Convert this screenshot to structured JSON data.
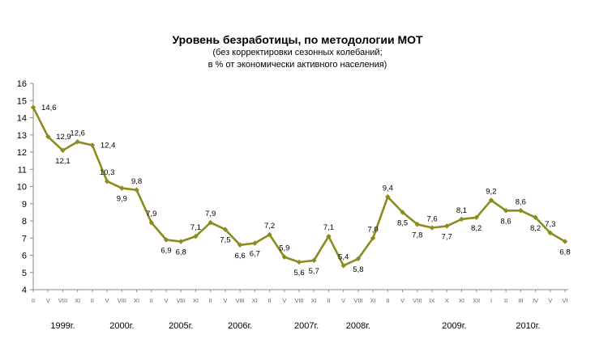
{
  "chart_data": {
    "type": "line",
    "title": "Уровень безработицы, по методологии МОТ",
    "subtitle_1": "(без корректировки сезонных колебаний;",
    "subtitle_2": "в  % от экономически активного населения)",
    "ylim": [
      4,
      16
    ],
    "yticks": [
      "4",
      "5",
      "6",
      "7",
      "8",
      "9",
      "10",
      "11",
      "12",
      "13",
      "14",
      "15",
      "16"
    ],
    "grid": false,
    "legend": "none",
    "color": "#8B8B1E",
    "x": [
      "II",
      "V",
      "VIII",
      "XI",
      "II",
      "V",
      "VIII",
      "XI",
      "II",
      "V",
      "VIII",
      "XI",
      "II",
      "V",
      "VIII",
      "XI",
      "II",
      "V",
      "VIII",
      "XI",
      "II",
      "V",
      "VIII",
      "XI",
      "II",
      "V",
      "VIII",
      "IX",
      "X",
      "XI",
      "XII",
      "I",
      "II",
      "III",
      "IV",
      "V",
      "VI"
    ],
    "values": [
      14.6,
      12.9,
      12.1,
      12.6,
      12.4,
      10.3,
      9.9,
      9.8,
      7.9,
      6.9,
      6.8,
      7.1,
      7.9,
      7.5,
      6.6,
      6.7,
      7.2,
      5.9,
      5.6,
      5.7,
      7.1,
      5.4,
      5.8,
      7.0,
      9.4,
      8.5,
      7.8,
      7.6,
      7.7,
      8.1,
      8.2,
      9.2,
      8.6,
      8.6,
      8.2,
      7.3,
      6.8
    ],
    "data_labels": [
      "14,6",
      "12,9",
      "12,1",
      "12,6",
      "12,4",
      "10,3",
      "9,9",
      "9,8",
      "7,9",
      "6,9",
      "6,8",
      "7,1",
      "7,9",
      "7,5",
      "6,6",
      "6,7",
      "7,2",
      "5,9",
      "5,6",
      "5,7",
      "7,1",
      "5,4",
      "5,8",
      "7,0",
      "9,4",
      "8,5",
      "7,8",
      "7,6",
      "7,7",
      "8,1",
      "8,2",
      "9,2",
      "8,6",
      "8,6",
      "8,2",
      "7,3",
      "6,8"
    ],
    "label_pos": [
      "r",
      "r",
      "b",
      "a",
      "r",
      "a",
      "b",
      "a",
      "a",
      "b",
      "b",
      "a",
      "a",
      "b",
      "b",
      "b",
      "a",
      "a",
      "b",
      "b",
      "a",
      "a",
      "b",
      "a",
      "a",
      "b",
      "b",
      "a",
      "b",
      "a",
      "b",
      "a",
      "b",
      "a",
      "b",
      "a",
      "b"
    ],
    "years": [
      {
        "label": "1999г.",
        "at": 2
      },
      {
        "label": "2000г.",
        "at": 6
      },
      {
        "label": "2005г.",
        "at": 10
      },
      {
        "label": "2006г.",
        "at": 14
      },
      {
        "label": "2007г.",
        "at": 18.5
      },
      {
        "label": "2008г.",
        "at": 22
      },
      {
        "label": "2009г.",
        "at": 28.5
      },
      {
        "label": "2010г.",
        "at": 33.5
      }
    ]
  }
}
